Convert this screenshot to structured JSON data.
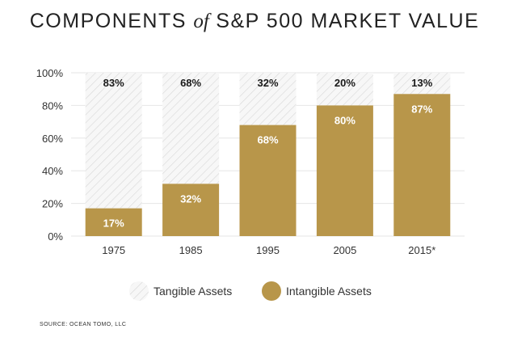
{
  "title": {
    "part1": "COMPONENTS ",
    "connector": "of",
    "part2": " S&P 500 MARKET VALUE"
  },
  "source": "SOURCE: OCEAN TOMO, LLC",
  "colors": {
    "intangible": "#b8964a",
    "tangible_hatch": "#d7d7d7",
    "tangible_bg": "#f7f7f7",
    "grid": "#e6e6e6",
    "label_dark": "#1a1a1a",
    "label_light": "#ffffff"
  },
  "chart_data": {
    "type": "bar",
    "stacked": true,
    "categories": [
      "1975",
      "1985",
      "1995",
      "2005",
      "2015*"
    ],
    "ylim": [
      0,
      100
    ],
    "yticks": [
      0,
      20,
      40,
      60,
      80,
      100
    ],
    "ytick_labels": [
      "0%",
      "20%",
      "40%",
      "60%",
      "80%",
      "100%"
    ],
    "grid": true,
    "series": [
      {
        "name": "Intangible Assets",
        "values": [
          17,
          32,
          68,
          80,
          87
        ],
        "labels": [
          "17%",
          "32%",
          "68%",
          "80%",
          "87%"
        ]
      },
      {
        "name": "Tangible Assets",
        "values": [
          83,
          68,
          32,
          20,
          13
        ],
        "labels": [
          "83%",
          "68%",
          "32%",
          "20%",
          "13%"
        ]
      }
    ],
    "legend_position": "bottom"
  }
}
